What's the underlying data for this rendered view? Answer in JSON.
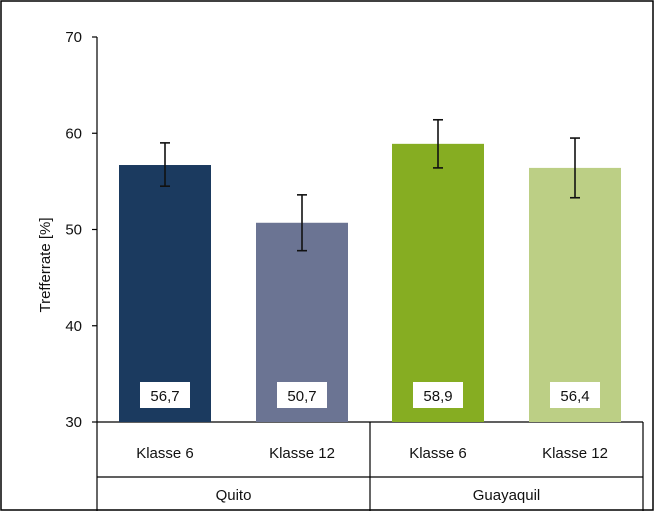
{
  "chart_data": {
    "type": "bar",
    "ylabel": "Trefferrate [%]",
    "xlabel": "",
    "title": "",
    "ylim": [
      30,
      70
    ],
    "yticks": [
      30,
      40,
      50,
      60,
      70
    ],
    "grid": false,
    "legend": "none",
    "groups": [
      {
        "name": "Quito",
        "categories": [
          "Klasse 6",
          "Klasse 12"
        ]
      },
      {
        "name": "Guayaquil",
        "categories": [
          "Klasse 6",
          "Klasse 12"
        ]
      }
    ],
    "bars": [
      {
        "group": "Quito",
        "category": "Klasse 6",
        "value": 56.7,
        "label": "56,7",
        "err_low": 54.5,
        "err_high": 59.0,
        "color": "#1b3a5f"
      },
      {
        "group": "Quito",
        "category": "Klasse 12",
        "value": 50.7,
        "label": "50,7",
        "err_low": 47.8,
        "err_high": 53.6,
        "color": "#6b7493"
      },
      {
        "group": "Guayaquil",
        "category": "Klasse 6",
        "value": 58.9,
        "label": "58,9",
        "err_low": 56.4,
        "err_high": 61.4,
        "color": "#86ad22"
      },
      {
        "group": "Guayaquil",
        "category": "Klasse 12",
        "value": 56.4,
        "label": "56,4",
        "err_low": 53.3,
        "err_high": 59.5,
        "color": "#bccf85"
      }
    ]
  }
}
